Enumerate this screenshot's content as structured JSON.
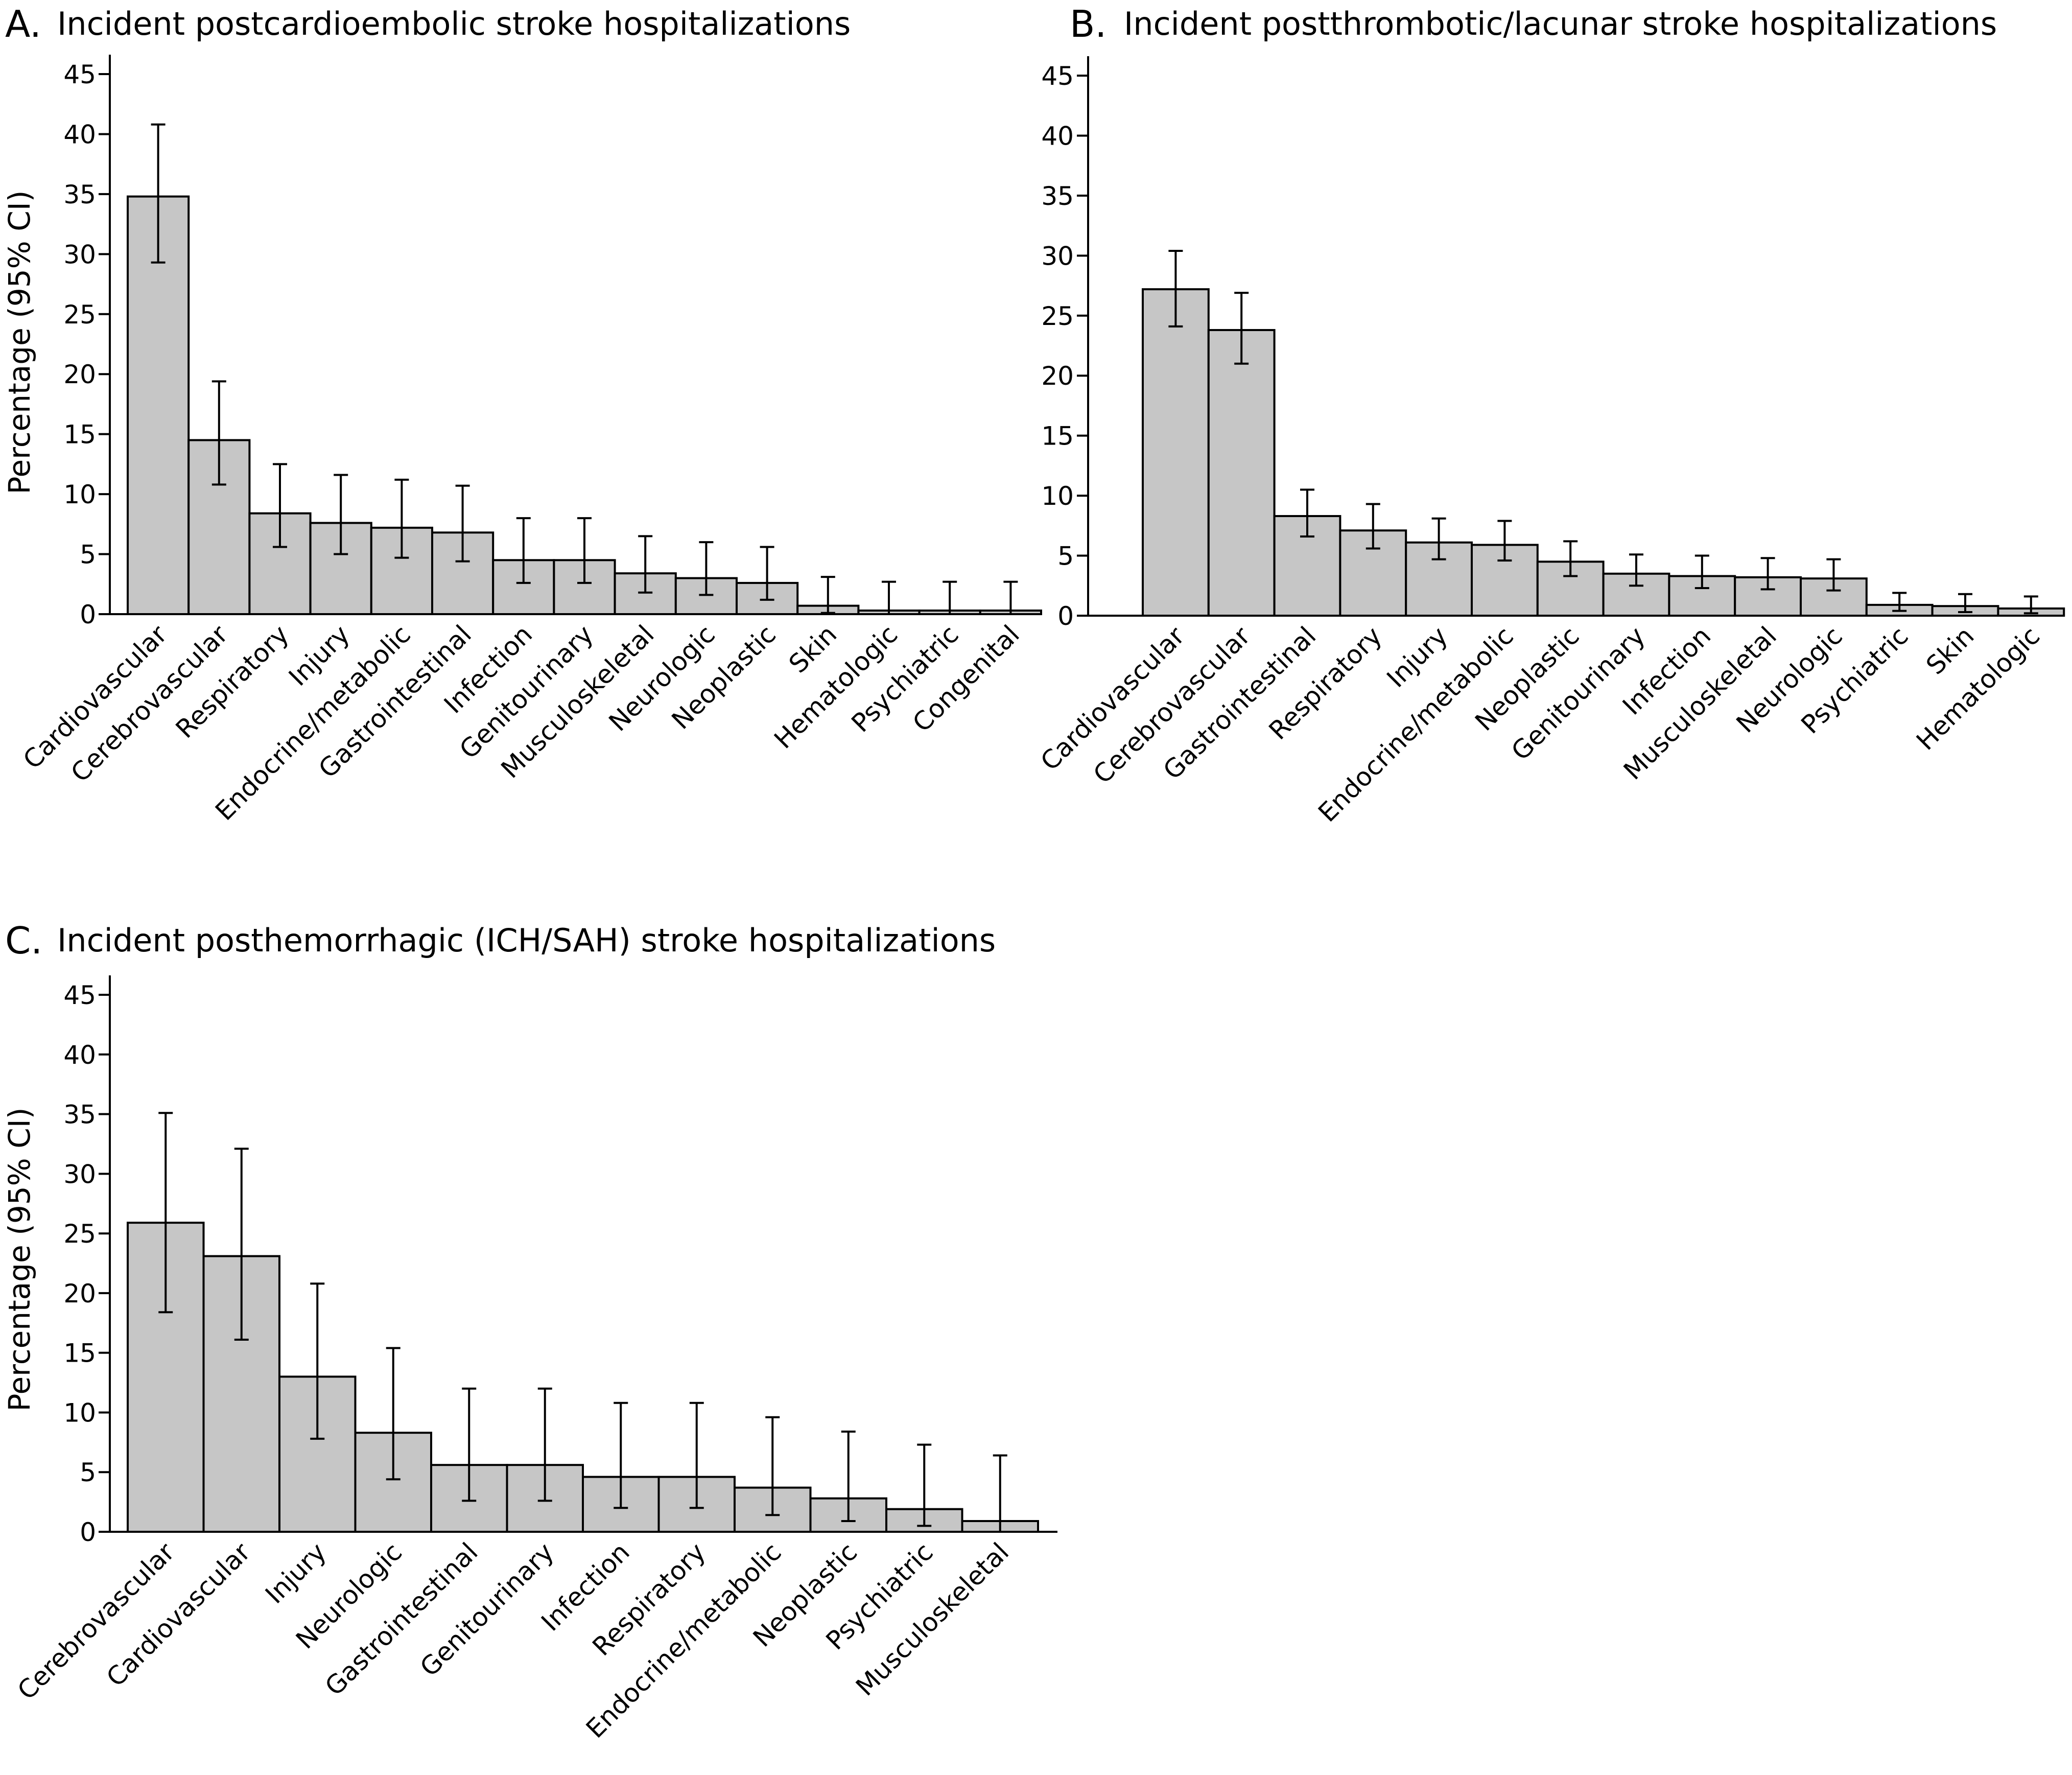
{
  "chart_data": [
    {
      "type": "bar",
      "panel": "A.",
      "title": "Incident postcardioembolic stroke hospitalizations",
      "ylabel": "Percentage (95% CI)",
      "ylim": [
        0,
        45
      ],
      "yticks": [
        0,
        5,
        10,
        15,
        20,
        25,
        30,
        35,
        40,
        45
      ],
      "grid": false,
      "categories": [
        "Cardiovascular",
        "Cerebrovascular",
        "Respiratory",
        "Injury",
        "Endocrine/metabolic",
        "Gastrointestinal",
        "Infection",
        "Genitourinary",
        "Musculoskeletal",
        "Neurologic",
        "Neoplastic",
        "Skin",
        "Hematologic",
        "Psychiatric",
        "Congenital"
      ],
      "values": [
        34.8,
        14.5,
        8.4,
        7.6,
        7.2,
        6.8,
        4.5,
        4.5,
        3.4,
        3.0,
        2.6,
        0.7,
        0.3,
        0.3,
        0.3
      ],
      "ci_lower": [
        29.3,
        10.8,
        5.6,
        5.0,
        4.7,
        4.4,
        2.6,
        2.6,
        1.8,
        1.6,
        1.2,
        0.1,
        0.0,
        0.0,
        0.0
      ],
      "ci_upper": [
        40.8,
        19.4,
        12.5,
        11.6,
        11.2,
        10.7,
        8.0,
        8.0,
        6.5,
        6.0,
        5.6,
        3.1,
        2.7,
        2.7,
        2.7
      ]
    },
    {
      "type": "bar",
      "panel": "B.",
      "title": "Incident postthrombotic/lacunar stroke hospitalizations",
      "ylabel": "",
      "ylim": [
        0,
        45
      ],
      "yticks": [
        0,
        5,
        10,
        15,
        20,
        25,
        30,
        35,
        40,
        45
      ],
      "grid": false,
      "categories": [
        "Cardiovascular",
        "Cerebrovascular",
        "Gastrointestinal",
        "Respiratory",
        "Injury",
        "Endocrine/metabolic",
        "Neoplastic",
        "Genitourinary",
        "Infection",
        "Musculoskeletal",
        "Neurologic",
        "Psychiatric",
        "Skin",
        "Hematologic"
      ],
      "values": [
        27.2,
        23.8,
        8.3,
        7.1,
        6.1,
        5.9,
        4.5,
        3.5,
        3.3,
        3.2,
        3.1,
        0.9,
        0.8,
        0.6
      ],
      "ci_lower": [
        24.1,
        21.0,
        6.6,
        5.6,
        4.7,
        4.6,
        3.3,
        2.5,
        2.3,
        2.2,
        2.1,
        0.4,
        0.3,
        0.2
      ],
      "ci_upper": [
        30.4,
        26.9,
        10.5,
        9.3,
        8.1,
        7.9,
        6.2,
        5.1,
        5.0,
        4.8,
        4.7,
        1.9,
        1.8,
        1.6
      ]
    },
    {
      "type": "bar",
      "panel": "C.",
      "title": "Incident posthemorrhagic (ICH/SAH) stroke hospitalizations",
      "ylabel": "Percentage (95% CI)",
      "ylim": [
        0,
        45
      ],
      "yticks": [
        0,
        5,
        10,
        15,
        20,
        25,
        30,
        35,
        40,
        45
      ],
      "grid": false,
      "categories": [
        "Cerebrovascular",
        "Cardiovascular",
        "Injury",
        "Neurologic",
        "Gastrointestinal",
        "Genitourinary",
        "Infection",
        "Respiratory",
        "Endocrine/metabolic",
        "Neoplastic",
        "Psychiatric",
        "Musculoskeletal"
      ],
      "values": [
        25.9,
        23.1,
        13.0,
        8.3,
        5.6,
        5.6,
        4.6,
        4.6,
        3.7,
        2.8,
        1.9,
        0.9
      ],
      "ci_lower": [
        18.4,
        16.1,
        7.8,
        4.4,
        2.6,
        2.6,
        2.0,
        2.0,
        1.4,
        0.9,
        0.5,
        0.0
      ],
      "ci_upper": [
        35.1,
        32.1,
        20.8,
        15.4,
        12.0,
        12.0,
        10.8,
        10.8,
        9.6,
        8.4,
        7.3,
        6.4
      ]
    }
  ]
}
